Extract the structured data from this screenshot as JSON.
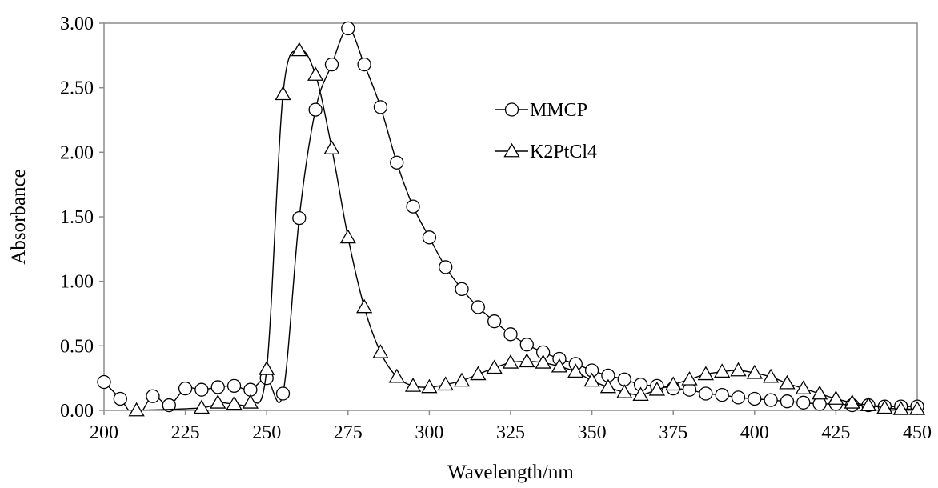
{
  "chart_data": {
    "type": "line",
    "title": "",
    "xlabel": "Wavelength/nm",
    "ylabel": "Absorbance",
    "xlim": [
      200,
      450
    ],
    "ylim": [
      0,
      3
    ],
    "xticks": [
      "200",
      "225",
      "250",
      "275",
      "300",
      "325",
      "350",
      "375",
      "400",
      "425",
      "450"
    ],
    "yticks": [
      "0.00",
      "0.50",
      "1.00",
      "1.50",
      "2.00",
      "2.50",
      "3.00"
    ],
    "grid": false,
    "legend_position": "upper-right-center",
    "line_color": "#000000",
    "series": [
      {
        "name": "MMCP",
        "marker": "circle",
        "x": [
          200,
          205,
          210,
          215,
          220,
          225,
          230,
          235,
          240,
          245,
          250,
          255,
          260,
          265,
          270,
          275,
          280,
          285,
          290,
          295,
          300,
          305,
          310,
          315,
          320,
          325,
          330,
          335,
          340,
          345,
          350,
          355,
          360,
          365,
          370,
          375,
          380,
          385,
          390,
          395,
          400,
          405,
          410,
          415,
          420,
          425,
          430,
          435,
          440,
          445,
          450
        ],
        "y": [
          0.22,
          0.09,
          -0.05,
          0.11,
          0.04,
          0.17,
          0.16,
          0.18,
          0.19,
          0.16,
          0.25,
          0.13,
          1.49,
          2.33,
          2.68,
          2.96,
          2.68,
          2.35,
          1.92,
          1.58,
          1.34,
          1.11,
          0.94,
          0.8,
          0.69,
          0.59,
          0.51,
          0.45,
          0.4,
          0.36,
          0.31,
          0.27,
          0.24,
          0.2,
          0.19,
          0.17,
          0.16,
          0.13,
          0.12,
          0.1,
          0.09,
          0.08,
          0.07,
          0.06,
          0.05,
          0.05,
          0.04,
          0.04,
          0.03,
          0.03,
          0.03
        ]
      },
      {
        "name": "K2PtCl4",
        "marker": "triangle",
        "x": [
          210,
          230,
          235,
          240,
          245,
          250,
          255,
          260,
          265,
          270,
          275,
          280,
          285,
          290,
          295,
          300,
          305,
          310,
          315,
          320,
          325,
          330,
          335,
          340,
          345,
          350,
          355,
          360,
          365,
          370,
          375,
          380,
          385,
          390,
          395,
          400,
          405,
          410,
          415,
          420,
          425,
          430,
          435,
          440,
          445,
          450
        ],
        "y": [
          0.0,
          0.02,
          0.06,
          0.05,
          0.06,
          0.32,
          2.45,
          2.79,
          2.6,
          2.03,
          1.34,
          0.8,
          0.45,
          0.26,
          0.19,
          0.18,
          0.2,
          0.23,
          0.28,
          0.33,
          0.37,
          0.38,
          0.37,
          0.34,
          0.3,
          0.23,
          0.18,
          0.14,
          0.12,
          0.16,
          0.2,
          0.24,
          0.28,
          0.3,
          0.31,
          0.29,
          0.26,
          0.21,
          0.17,
          0.13,
          0.09,
          0.06,
          0.04,
          0.02,
          0.01,
          0.01
        ]
      }
    ]
  }
}
